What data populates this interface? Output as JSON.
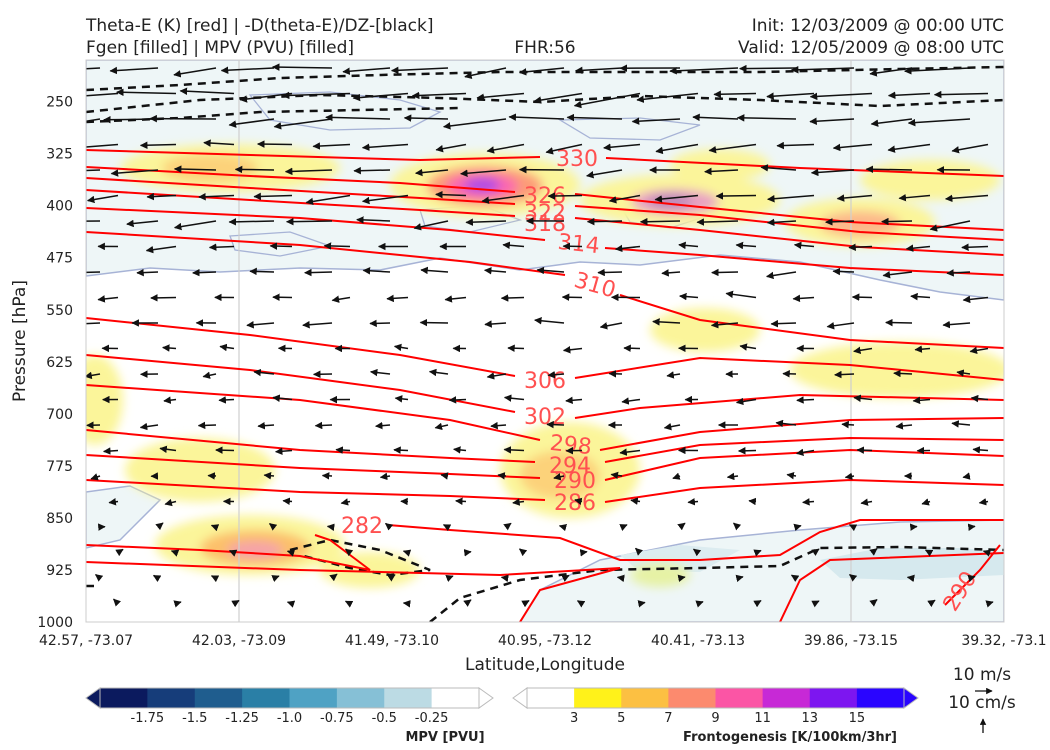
{
  "titles": {
    "left1": "Theta-E (K) [red] | -D(theta-E)/DZ-[black]",
    "left2": "Fgen [filled] | MPV (PVU) [filled]",
    "center": "FHR:56",
    "right1": "Init: 12/03/2009 @ 00:00 UTC",
    "right2": "Valid: 12/05/2009 @ 08:00 UTC"
  },
  "chart_data": {
    "type": "cross-section",
    "xlabel": "Latitude,Longitude",
    "ylabel": "Pressure [hPa]",
    "x_ticks": [
      "42.57, -73.07",
      "42.03, -73.09",
      "41.49, -73.10",
      "40.95, -73.12",
      "40.41, -73.13",
      "39.86, -73.15",
      "39.32, -73.1"
    ],
    "y_ticks": [
      "250",
      "325",
      "400",
      "475",
      "550",
      "625",
      "700",
      "775",
      "850",
      "925",
      "1000"
    ],
    "ylim": [
      1000,
      190
    ],
    "grid": true,
    "theta_e_contour_labels": [
      "330",
      "326",
      "322",
      "318",
      "314",
      "310",
      "306",
      "302",
      "298",
      "294",
      "290",
      "286",
      "282",
      "290"
    ],
    "mpv_colorbar": {
      "label": "MPV [PVU]",
      "ticks": [
        "-1.75",
        "-1.5",
        "-1.25",
        "-1.0",
        "-0.75",
        "-0.5",
        "-0.25"
      ],
      "colors": [
        "#0b1a5e",
        "#163d7a",
        "#1f5d8e",
        "#2a7fa6",
        "#4fa2c4",
        "#86c0d6",
        "#bcdbe4",
        "#ffffff"
      ]
    },
    "fgen_colorbar": {
      "label": "Frontogenesis [K/100km/3hr]",
      "ticks": [
        "3",
        "5",
        "7",
        "9",
        "11",
        "13",
        "15"
      ],
      "colors": [
        "#ffffff",
        "#fff21a",
        "#fcc042",
        "#fc8a6e",
        "#fb55a5",
        "#c729d6",
        "#7d16f0",
        "#2a05ff"
      ]
    },
    "vector_key": {
      "horizontal": "10 m/s",
      "vertical": "10 cm/s"
    }
  }
}
